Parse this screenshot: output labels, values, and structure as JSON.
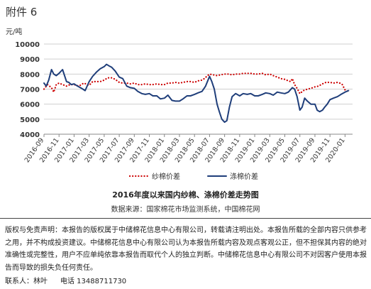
{
  "attachment_label": "附件 6",
  "footer": {
    "disclaimer": "版权与免责声明：本报告的版权属于中储棉花信息中心有限公司，转载请注明出处。本报告所载的全部内容只供参考之用，并不构成投资建议。中储棉花信息中心有限公司认为本报告所载内容及观点客观公正，但不担保其内容的绝对准确性或完整性，用户不应单纯依靠本报告而取代个人的独立判断。中储棉花信息中心有限公司不对因客户使用本报告而导致的损失负任何责任。",
    "contact_label": "联系人：林叶",
    "phone_label": "电话 13488711730"
  },
  "colors": {
    "yarn_spread": "#cc0000",
    "polyester_spread": "#1f3e7a",
    "grid": "#cfcfcf",
    "axis": "#888888"
  },
  "chart_data": {
    "type": "line",
    "title": "2016年度以来国内纱棉、涤棉价差走势图",
    "subtitle": "数据来源：国家棉花市场监测系统，中国棉花网",
    "ylabel": "元/吨",
    "ylim": [
      4000,
      10000
    ],
    "yticks": [
      4000,
      5000,
      6000,
      7000,
      8000,
      9000,
      10000
    ],
    "xlim": [
      "2016-09",
      "2020-02"
    ],
    "xticks": [
      "2016-09",
      "2016-11",
      "2017-01",
      "2017-03",
      "2017-05",
      "2017-07",
      "2017-09",
      "2017-11",
      "2018-01",
      "2018-03",
      "2018-05",
      "2018-07",
      "2018-09",
      "2018-11",
      "2019-01",
      "2019-03",
      "2019-05",
      "2019-07",
      "2019-09",
      "2019-11",
      "2020-01"
    ],
    "grid": true,
    "legend_position": "bottom",
    "series": [
      {
        "name": "纱棉价差",
        "style": "dotted",
        "x": [
          "2016-09-01",
          "2016-09-15",
          "2016-10-01",
          "2016-10-10",
          "2016-10-20",
          "2016-11-01",
          "2016-11-15",
          "2016-12-01",
          "2016-12-15",
          "2017-01-01",
          "2017-01-20",
          "2017-02-10",
          "2017-03-01",
          "2017-03-15",
          "2017-04-01",
          "2017-04-15",
          "2017-05-01",
          "2017-05-15",
          "2017-06-01",
          "2017-06-15",
          "2017-07-01",
          "2017-07-15",
          "2017-08-01",
          "2017-08-15",
          "2017-09-01",
          "2017-09-15",
          "2017-10-01",
          "2017-10-15",
          "2017-11-01",
          "2017-11-15",
          "2017-12-01",
          "2017-12-15",
          "2018-01-01",
          "2018-01-15",
          "2018-02-01",
          "2018-02-15",
          "2018-03-01",
          "2018-03-15",
          "2018-04-01",
          "2018-04-15",
          "2018-05-01",
          "2018-05-15",
          "2018-06-01",
          "2018-06-10",
          "2018-06-20",
          "2018-07-01",
          "2018-07-15",
          "2018-08-01",
          "2018-08-15",
          "2018-09-01",
          "2018-09-15",
          "2018-10-01",
          "2018-10-15",
          "2018-11-01",
          "2018-11-15",
          "2018-12-01",
          "2018-12-15",
          "2019-01-01",
          "2019-01-15",
          "2019-02-01",
          "2019-02-15",
          "2019-03-01",
          "2019-03-15",
          "2019-04-01",
          "2019-04-15",
          "2019-05-01",
          "2019-05-15",
          "2019-05-25",
          "2019-06-01",
          "2019-06-10",
          "2019-06-20",
          "2019-07-01",
          "2019-07-15",
          "2019-08-01",
          "2019-08-15",
          "2019-09-01",
          "2019-09-15",
          "2019-10-01",
          "2019-10-15",
          "2019-11-01",
          "2019-11-15",
          "2019-12-01",
          "2019-12-10",
          "2019-12-20",
          "2020-01-01",
          "2020-01-15"
        ],
        "y": [
          7000,
          7300,
          7100,
          6800,
          7300,
          7400,
          7300,
          7200,
          7300,
          7300,
          7200,
          7400,
          7250,
          7500,
          7500,
          7500,
          7600,
          7750,
          7750,
          7650,
          7450,
          7400,
          7400,
          7350,
          7400,
          7300,
          7300,
          7350,
          7300,
          7300,
          7350,
          7300,
          7300,
          7400,
          7400,
          7450,
          7400,
          7450,
          7500,
          7500,
          7450,
          7550,
          7600,
          7700,
          7850,
          8000,
          7950,
          7900,
          7950,
          8000,
          8000,
          7950,
          8000,
          8000,
          8050,
          8050,
          8050,
          8000,
          8000,
          8050,
          7950,
          8000,
          7900,
          7800,
          7700,
          7650,
          7550,
          7500,
          7700,
          7300,
          7050,
          6700,
          6900,
          7000,
          7050,
          7150,
          7200,
          7350,
          7450,
          7450,
          7400,
          7450,
          7400,
          7300,
          6950,
          6850
        ]
      },
      {
        "name": "涤棉价差",
        "style": "solid",
        "x": [
          "2016-09-01",
          "2016-09-10",
          "2016-09-20",
          "2016-10-01",
          "2016-10-10",
          "2016-10-20",
          "2016-11-01",
          "2016-11-15",
          "2016-12-01",
          "2016-12-10",
          "2016-12-20",
          "2017-01-01",
          "2017-01-15",
          "2017-02-01",
          "2017-02-15",
          "2017-03-01",
          "2017-03-15",
          "2017-04-01",
          "2017-04-15",
          "2017-05-01",
          "2017-05-10",
          "2017-05-20",
          "2017-06-01",
          "2017-06-15",
          "2017-07-01",
          "2017-07-15",
          "2017-08-01",
          "2017-08-15",
          "2017-09-01",
          "2017-09-15",
          "2017-10-01",
          "2017-10-15",
          "2017-11-01",
          "2017-11-15",
          "2017-12-01",
          "2017-12-15",
          "2018-01-01",
          "2018-01-15",
          "2018-02-01",
          "2018-02-15",
          "2018-03-01",
          "2018-03-15",
          "2018-04-01",
          "2018-04-15",
          "2018-05-01",
          "2018-05-15",
          "2018-06-01",
          "2018-06-15",
          "2018-07-01",
          "2018-07-10",
          "2018-07-20",
          "2018-08-01",
          "2018-08-10",
          "2018-08-20",
          "2018-09-01",
          "2018-09-10",
          "2018-09-20",
          "2018-10-01",
          "2018-10-15",
          "2018-11-01",
          "2018-11-15",
          "2018-12-01",
          "2018-12-15",
          "2019-01-01",
          "2019-01-15",
          "2019-02-01",
          "2019-02-15",
          "2019-03-01",
          "2019-03-15",
          "2019-04-01",
          "2019-04-15",
          "2019-05-01",
          "2019-05-15",
          "2019-06-01",
          "2019-06-10",
          "2019-06-20",
          "2019-07-01",
          "2019-07-10",
          "2019-07-20",
          "2019-08-01",
          "2019-08-15",
          "2019-09-01",
          "2019-09-10",
          "2019-09-20",
          "2019-10-01",
          "2019-10-10",
          "2019-10-20",
          "2019-11-01",
          "2019-11-15",
          "2019-12-01",
          "2019-12-15",
          "2020-01-01",
          "2020-01-15"
        ],
        "y": [
          7400,
          7200,
          7600,
          8300,
          8000,
          7900,
          8050,
          8300,
          7500,
          7450,
          7300,
          7350,
          7200,
          7050,
          6900,
          7500,
          7850,
          8150,
          8350,
          8500,
          8650,
          8550,
          8450,
          8200,
          7800,
          7700,
          7200,
          7100,
          7050,
          6850,
          6700,
          6650,
          6700,
          6550,
          6550,
          6350,
          6400,
          6600,
          6250,
          6200,
          6200,
          6350,
          6550,
          6550,
          6650,
          6750,
          6850,
          7200,
          7850,
          7500,
          7000,
          6000,
          5500,
          5000,
          4800,
          4900,
          5800,
          6500,
          6700,
          6550,
          6700,
          6650,
          6700,
          6550,
          6550,
          6650,
          6750,
          6700,
          6600,
          6800,
          6750,
          6700,
          6800,
          7100,
          7000,
          6500,
          5600,
          5800,
          6400,
          6200,
          6000,
          6000,
          5600,
          5500,
          5600,
          5800,
          6000,
          6300,
          6400,
          6500,
          6650,
          6800,
          6900
        ]
      }
    ]
  }
}
